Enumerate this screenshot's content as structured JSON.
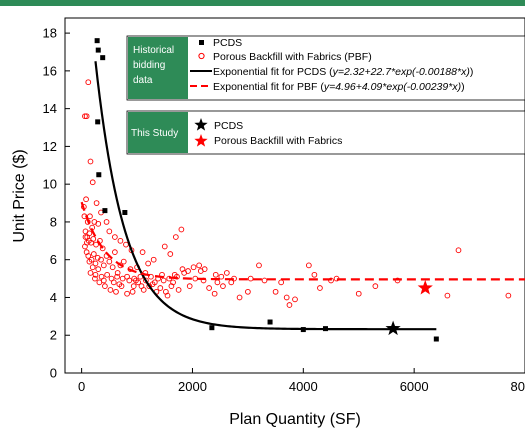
{
  "chart_data": {
    "type": "scatter",
    "xlabel": "Plan Quantity (SF)",
    "ylabel": "Unit Price ($)",
    "xlim": [
      -300,
      8000
    ],
    "ylim": [
      0,
      18.8
    ],
    "xticks": [
      0,
      2000,
      4000,
      6000,
      8000
    ],
    "xtick_labels": [
      "0",
      "2000",
      "4000",
      "6000",
      "8000"
    ],
    "yticks": [
      0,
      2,
      4,
      6,
      8,
      10,
      12,
      14,
      16,
      18
    ],
    "ytick_labels": [
      "0",
      "2",
      "4",
      "6",
      "8",
      "10",
      "12",
      "14",
      "16",
      "18"
    ],
    "legend_tags": [
      "Historical bidding data",
      "This Study"
    ],
    "tag_color": "#2e8b57",
    "series": [
      {
        "name": "PCDS",
        "kind": "scatter",
        "marker": "square",
        "color": "#000000",
        "points": [
          [
            280,
            17.6
          ],
          [
            300,
            17.1
          ],
          [
            380,
            16.7
          ],
          [
            290,
            13.3
          ],
          [
            310,
            10.5
          ],
          [
            420,
            8.6
          ],
          [
            780,
            8.5
          ],
          [
            2350,
            2.4
          ],
          [
            3400,
            2.7
          ],
          [
            4000,
            2.3
          ],
          [
            4400,
            2.35
          ],
          [
            6400,
            1.8
          ]
        ]
      },
      {
        "name": "Porous Backfill with Fabrics (PBF)",
        "kind": "scatter",
        "marker": "open-circle",
        "color": "#ff0000",
        "points": [
          [
            60,
            13.6
          ],
          [
            90,
            13.6
          ],
          [
            120,
            15.4
          ],
          [
            160,
            11.2
          ],
          [
            200,
            10.1
          ],
          [
            80,
            9.2
          ],
          [
            40,
            8.8
          ],
          [
            50,
            8.3
          ],
          [
            110,
            8.0
          ],
          [
            150,
            8.3
          ],
          [
            230,
            8.0
          ],
          [
            300,
            7.9
          ],
          [
            70,
            7.5
          ],
          [
            100,
            7.2
          ],
          [
            130,
            7.0
          ],
          [
            170,
            6.9
          ],
          [
            210,
            7.1
          ],
          [
            260,
            6.8
          ],
          [
            330,
            7.0
          ],
          [
            380,
            6.6
          ],
          [
            60,
            6.7
          ],
          [
            90,
            6.4
          ],
          [
            120,
            6.2
          ],
          [
            140,
            5.9
          ],
          [
            180,
            6.0
          ],
          [
            220,
            6.3
          ],
          [
            250,
            5.8
          ],
          [
            290,
            6.1
          ],
          [
            350,
            6.0
          ],
          [
            400,
            5.7
          ],
          [
            450,
            6.2
          ],
          [
            500,
            5.9
          ],
          [
            560,
            5.6
          ],
          [
            600,
            6.4
          ],
          [
            650,
            5.3
          ],
          [
            700,
            5.7
          ],
          [
            760,
            5.9
          ],
          [
            820,
            5.1
          ],
          [
            880,
            5.5
          ],
          [
            950,
            5.0
          ],
          [
            1000,
            5.6
          ],
          [
            1080,
            4.6
          ],
          [
            1150,
            5.3
          ],
          [
            1250,
            5.1
          ],
          [
            1350,
            4.3
          ],
          [
            1450,
            5.2
          ],
          [
            1550,
            4.1
          ],
          [
            1650,
            4.8
          ],
          [
            1750,
            4.4
          ],
          [
            1850,
            5.3
          ],
          [
            1950,
            4.6
          ],
          [
            2050,
            5.0
          ],
          [
            2150,
            5.4
          ],
          [
            2300,
            4.5
          ],
          [
            2400,
            4.2
          ],
          [
            2550,
            4.6
          ],
          [
            2700,
            4.8
          ],
          [
            2850,
            4.0
          ],
          [
            3000,
            4.3
          ],
          [
            3200,
            5.7
          ],
          [
            3500,
            4.3
          ],
          [
            3700,
            4.0
          ],
          [
            3750,
            3.6
          ],
          [
            4100,
            5.7
          ],
          [
            4300,
            4.5
          ],
          [
            4600,
            5.0
          ],
          [
            5000,
            4.2
          ],
          [
            5300,
            4.6
          ],
          [
            5700,
            4.9
          ],
          [
            6600,
            4.1
          ],
          [
            6800,
            6.5
          ],
          [
            7700,
            4.1
          ],
          [
            160,
            5.3
          ],
          [
            240,
            5.0
          ],
          [
            320,
            4.8
          ],
          [
            420,
            4.6
          ],
          [
            520,
            4.4
          ],
          [
            620,
            4.3
          ],
          [
            720,
            4.6
          ],
          [
            820,
            4.2
          ],
          [
            920,
            4.3
          ],
          [
            1020,
            4.8
          ],
          [
            1120,
            4.4
          ],
          [
            1220,
            4.6
          ],
          [
            1320,
            4.8
          ],
          [
            1420,
            4.5
          ],
          [
            1520,
            4.3
          ],
          [
            1620,
            4.6
          ],
          [
            1720,
            5.1
          ],
          [
            1820,
            5.5
          ],
          [
            1920,
            5.4
          ],
          [
            2020,
            5.6
          ],
          [
            2120,
            5.7
          ],
          [
            2220,
            5.5
          ],
          [
            2420,
            5.2
          ],
          [
            2520,
            5.1
          ],
          [
            2620,
            5.3
          ],
          [
            1300,
            6.0
          ],
          [
            1500,
            6.7
          ],
          [
            1600,
            6.3
          ],
          [
            1700,
            7.2
          ],
          [
            1800,
            7.6
          ],
          [
            1200,
            5.8
          ],
          [
            1100,
            6.4
          ],
          [
            900,
            6.5
          ],
          [
            800,
            6.8
          ],
          [
            700,
            7.0
          ],
          [
            600,
            7.2
          ],
          [
            500,
            7.5
          ],
          [
            450,
            8.0
          ],
          [
            350,
            8.5
          ],
          [
            270,
            9.0
          ],
          [
            190,
            7.7
          ],
          [
            140,
            7.4
          ],
          [
            95,
            6.9
          ],
          [
            70,
            7.2
          ],
          [
            200,
            5.6
          ],
          [
            250,
            5.2
          ],
          [
            300,
            5.5
          ],
          [
            360,
            5.1
          ],
          [
            400,
            4.9
          ],
          [
            460,
            5.2
          ],
          [
            540,
            5.0
          ],
          [
            580,
            4.8
          ],
          [
            640,
            5.1
          ],
          [
            680,
            4.7
          ],
          [
            740,
            5.0
          ],
          [
            860,
            4.9
          ],
          [
            940,
            4.6
          ],
          [
            980,
            4.9
          ],
          [
            1060,
            5.1
          ],
          [
            1160,
            4.9
          ],
          [
            1280,
            4.7
          ],
          [
            1380,
            5.0
          ],
          [
            1480,
            4.9
          ],
          [
            1580,
            5.0
          ],
          [
            1680,
            5.2
          ],
          [
            2200,
            4.9
          ],
          [
            2450,
            4.8
          ],
          [
            2750,
            5.0
          ],
          [
            3050,
            5.0
          ],
          [
            3300,
            4.9
          ],
          [
            3600,
            4.8
          ],
          [
            3850,
            3.9
          ],
          [
            4200,
            5.2
          ],
          [
            4500,
            4.9
          ]
        ]
      },
      {
        "name": "Exponential fit for PCDS",
        "equation": "y=2.32+22.7*exp(-0.00188*x)",
        "kind": "line",
        "style": "solid",
        "color": "#000000",
        "a": 2.32,
        "b": 22.7,
        "c": -0.00188,
        "x_range": [
          250,
          6400
        ]
      },
      {
        "name": "Exponential fit for PBF",
        "equation": "y=4.96+4.09*exp(-0.00239*x)",
        "kind": "line",
        "style": "dashed",
        "color": "#ff0000",
        "a": 4.96,
        "b": 4.09,
        "c": -0.00239,
        "x_range": [
          0,
          8000
        ]
      },
      {
        "name": "PCDS",
        "legend_group": "This Study",
        "kind": "scatter",
        "marker": "star",
        "color": "#000000",
        "points": [
          [
            5620,
            2.35
          ]
        ]
      },
      {
        "name": "Porous Backfill with Fabrics",
        "legend_group": "This Study",
        "kind": "scatter",
        "marker": "star",
        "color": "#ff0000",
        "points": [
          [
            6200,
            4.5
          ]
        ]
      }
    ]
  }
}
